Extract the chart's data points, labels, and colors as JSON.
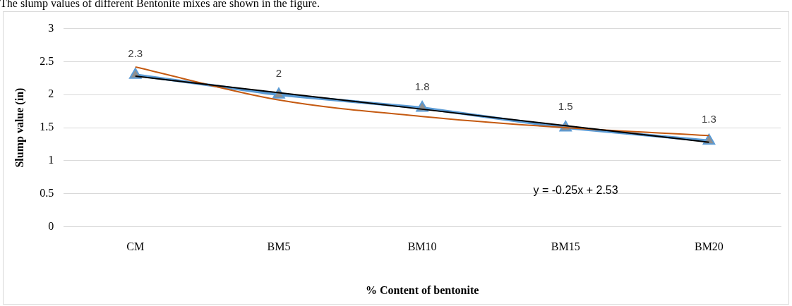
{
  "chart_data": {
    "type": "line",
    "title": "The slump values of different Bentonite mixes are shown in the figure.",
    "xlabel": "% Content of bentonite",
    "ylabel": "Slump value (in)",
    "categories": [
      "CM",
      "BM5",
      "BM10",
      "BM15",
      "BM20"
    ],
    "series": [
      {
        "color": "#5b9bd5",
        "values": [
          2.3,
          2,
          1.8,
          1.5,
          1.3
        ],
        "marker": "triangle",
        "value_labels": [
          "2.3",
          "2",
          "1.8",
          "1.5",
          "1.3"
        ]
      },
      {
        "type": "line",
        "color": "#c55a11",
        "values": [
          2.42,
          1.92,
          1.67,
          1.5,
          1.38
        ],
        "marker": "none"
      },
      {
        "type": "line",
        "color": "#000000",
        "values": [
          2.28,
          2.03,
          1.78,
          1.53,
          1.28
        ],
        "marker": "none"
      }
    ],
    "ylim": [
      0,
      3
    ],
    "yticks": [
      0,
      0.5,
      1,
      1.5,
      2,
      2.5,
      3
    ],
    "grid": "y",
    "legend": false,
    "annotations": [
      "y = -0.25x + 2.53"
    ]
  }
}
